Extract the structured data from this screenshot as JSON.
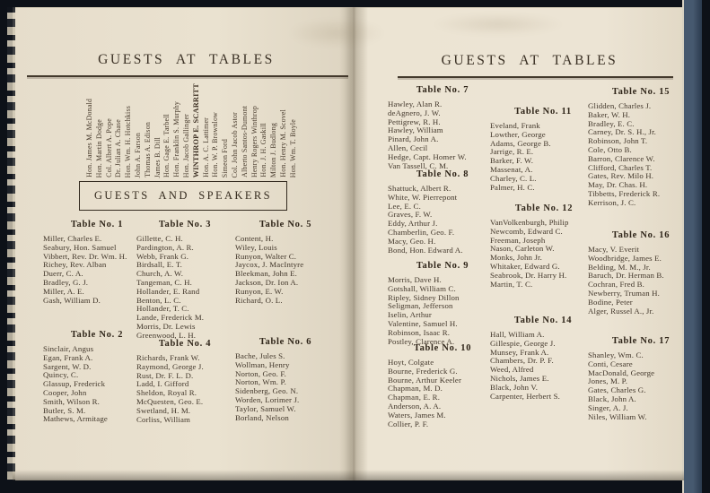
{
  "left_page": {
    "title": "GUESTS AT TABLES",
    "speakers_box_label": "GUESTS AND SPEAKERS",
    "speakers": [
      "Hon. James M. McDonald",
      "Hon. Martin Dodge",
      "Col. Albert A. Pope",
      "Dr. Julian A. Chase",
      "Hon. Wm. H. Hotchkiss",
      "John A. Farson",
      "Thomas A. Edison",
      "James B. Dill",
      "Hon. Gage E. Tarbell",
      "Hon. Franklin S. Murphy",
      "Hon. Jacob Gallinger",
      "WINTHROP E. SCARRITT",
      "Hon. A. C. Lattimer",
      "Hon. W. P. Brownlow",
      "Simeon Ford",
      "Col. John Jacob Astor",
      "Alberto Santos-Dumont",
      "Henry Rogers Winthrop",
      "Hon. J. H. Gaskill",
      "Milton J. Budlong",
      "Hon. Henry M. Scovel",
      "Hon. Wm. T. Boyle"
    ]
  },
  "right_page": {
    "title": "GUESTS AT TABLES"
  },
  "tables": [
    {
      "id": "t1",
      "title": "Table No. 1",
      "guests": [
        "Miller, Charles E.",
        "Seabury, Hon. Samuel",
        "Vibbert, Rev. Dr. Wm. H.",
        "Richey, Rev. Alban",
        "Duerr, C. A.",
        "Bradley, G. J.",
        "Miller, A. E.",
        "Gash, William D."
      ]
    },
    {
      "id": "t2",
      "title": "Table No. 2",
      "guests": [
        "Sinclair, Angus",
        "Egan, Frank A.",
        "Sargent, W. D.",
        "Quincy, C.",
        "Glassup, Frederick",
        "Cooper, John",
        "Smith, Wilson R.",
        "Butler, S. M.",
        "Mathews, Armitage"
      ]
    },
    {
      "id": "t3",
      "title": "Table No. 3",
      "guests": [
        "Gillette, C. H.",
        "Pardington, A. R.",
        "Webb, Frank G.",
        "Birdsall, E. T.",
        "Church, A. W.",
        "Tangeman, C. H.",
        "Hollander, E. Rand",
        "Benton, L. C.",
        "Hollander, T. C.",
        "Lande, Frederick M.",
        "Morris, Dr. Lewis",
        "Greenwood, L. H."
      ]
    },
    {
      "id": "t4",
      "title": "Table No. 4",
      "guests": [
        "Richards, Frank W.",
        "Raymond, George J.",
        "Rust, Dr. F. L. D.",
        "Ladd, I. Gifford",
        "Sheldon, Royal R.",
        "McQuesten, Geo. E.",
        "Swetland, H. M.",
        "Corliss, William"
      ]
    },
    {
      "id": "t5",
      "title": "Table No. 5",
      "guests": [
        "Content, H.",
        "Wiley, Louis",
        "Runyon, Walter C.",
        "Jaycox, J. MacIntyre",
        "Bleekman, John E.",
        "Jackson, Dr. Ion A.",
        "Runyon, E. W.",
        "Richard, O. L."
      ]
    },
    {
      "id": "t6",
      "title": "Table No. 6",
      "guests": [
        "Bache, Jules S.",
        "Wollman, Henry",
        "Norton, Geo. F.",
        "Norton, Wm. P.",
        "Sidenberg, Geo. N.",
        "Worden, Lorimer J.",
        "Taylor, Samuel W.",
        "Borland, Nelson"
      ]
    },
    {
      "id": "t7",
      "title": "Table No. 7",
      "guests": [
        "Hawley, Alan R.",
        "deAgnero, J. W.",
        "Pettigrew, R. H.",
        "Hawley, William",
        "Pinard, John A.",
        "Allen, Cecil",
        "Hedge, Capt. Homer W.",
        "Van Tassell, C. M."
      ]
    },
    {
      "id": "t8",
      "title": "Table No. 8",
      "guests": [
        "Shattuck, Albert R.",
        "White, W. Pierrepont",
        "Lee, E. C.",
        "Graves, F. W.",
        "Eddy, Arthur J.",
        "Chamberlin, Geo. F.",
        "Macy, Geo. H.",
        "Bond, Hon. Edward A."
      ]
    },
    {
      "id": "t9",
      "title": "Table No. 9",
      "guests": [
        "Morris, Dave H.",
        "Gotshall, William C.",
        "Ripley, Sidney Dillon",
        "Seligman, Jefferson",
        "Iselin, Arthur",
        "Valentine, Samuel H.",
        "Robinson, Isaac R.",
        "Postley, Clarence A."
      ]
    },
    {
      "id": "t10",
      "title": "Table No. 10",
      "guests": [
        "Hoyt, Colgate",
        "Bourne, Frederick G.",
        "Bourne, Arthur Keeler",
        "Chapman, M. D.",
        "Chapman, E. R.",
        "Anderson, A. A.",
        "Waters, James M.",
        "Collier, P. F."
      ]
    },
    {
      "id": "t11",
      "title": "Table No. 11",
      "guests": [
        "Eveland, Frank",
        "Lowther, George",
        "Adams, George B.",
        "Jarrige, R. E.",
        "Barker, F. W.",
        "Massenat, A.",
        "Charley, C. L.",
        "Palmer, H. C."
      ]
    },
    {
      "id": "t12",
      "title": "Table No. 12",
      "guests": [
        "VanVolkenburgh, Philip",
        "Newcomb, Edward C.",
        "Freeman, Joseph",
        "Nason, Carleton W.",
        "Monks, John Jr.",
        "Whitaker, Edward G.",
        "Seabrook, Dr. Harry H.",
        "Martin, T. C."
      ]
    },
    {
      "id": "t14",
      "title": "Table No. 14",
      "guests": [
        "Hall, William A.",
        "Gillespie, George J.",
        "Munsey, Frank A.",
        "Chambers, Dr. P. F.",
        "Weed, Alfred",
        "Nichols, James E.",
        "Black, John V.",
        "Carpenter, Herbert S."
      ]
    },
    {
      "id": "t15",
      "title": "Table No. 15",
      "guests": [
        "Glidden, Charles J.",
        "Baker, W. H.",
        "Bradley, E. C.",
        "Carney, Dr. S. H., Jr.",
        "Robinson, John T.",
        "Cole, Otto B.",
        "Barron, Clarence W.",
        "Clifford, Charles T.",
        "Gates, Rev. Milo H.",
        "May, Dr. Chas. H.",
        "Tibbetts, Frederick R.",
        "Kerrison, J. C."
      ]
    },
    {
      "id": "t16",
      "title": "Table No. 16",
      "guests": [
        "Macy, V. Everit",
        "Woodbridge, James E.",
        "Belding, M. M., Jr.",
        "Baruch, Dr. Herman B.",
        "Cochran, Fred B.",
        "Newberry, Truman H.",
        "Bodine, Peter",
        "Alger, Russel A., Jr."
      ]
    },
    {
      "id": "t17",
      "title": "Table No. 17",
      "guests": [
        "Shanley, Wm. C.",
        "Conti, Cesare",
        "MacDonald, George",
        "Jones, M. P.",
        "Gates, Charles G.",
        "Black, John A.",
        "Singer, A. J.",
        "Niles, William W."
      ]
    }
  ],
  "colors": {
    "paper": "#eae2d0",
    "ink": "#3c3125",
    "background": "#0d1118",
    "cover_blue": "#46596f"
  }
}
